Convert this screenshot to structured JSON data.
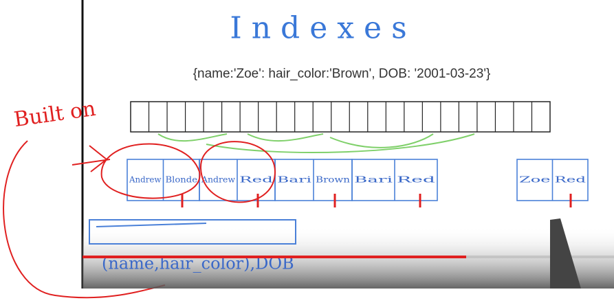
{
  "title": "Indexes",
  "document": "{name:'Zoe': hair_color:'Brown', DOB: '2001-03-23'}",
  "annotation": "Built on",
  "records": [
    [
      "Andrew",
      "Blonde"
    ],
    [
      "Andrew",
      "Red"
    ],
    [
      "Bari",
      "Brown"
    ],
    [
      "Bari",
      "Red"
    ],
    [
      "Zoe",
      "Red"
    ]
  ],
  "index_key": "(name,hair_color),DOB"
}
